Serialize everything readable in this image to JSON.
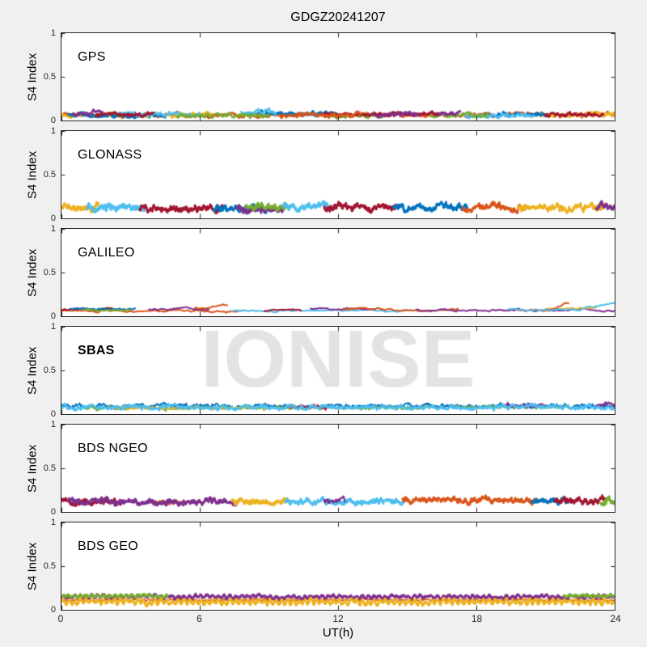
{
  "figure": {
    "title": "GDGZ20241207",
    "watermark": "IONISE",
    "background": "#f0f0f0",
    "panel_background": "#ffffff",
    "axis_color": "#262626",
    "text_color": "#000000",
    "watermark_color": "#e3e3e3"
  },
  "chart_data": {
    "type": "line",
    "title": "GDGZ20241207",
    "xlabel": "UT(h)",
    "ylabel": "S4 Index",
    "x_range": [
      0,
      24
    ],
    "y_range": [
      0,
      1
    ],
    "x_ticks": [
      0,
      6,
      12,
      18,
      24
    ],
    "y_ticks": [
      0,
      0.5,
      1
    ],
    "grid": false,
    "legend": "none",
    "watermark_text": "IONISE",
    "palette": {
      "blue": "#0072BD",
      "orange": "#D95319",
      "yellow": "#EDB120",
      "purple": "#7E2F8E",
      "green": "#77AC30",
      "lightblue": "#4DBEEE",
      "darkred": "#A2142F"
    },
    "panels": [
      {
        "label": "GPS",
        "bold": false,
        "lw": 2.4,
        "amp": 0.03,
        "pts": 50,
        "series": [
          {
            "c": "orange",
            "t0": 0,
            "t1": 24,
            "b": 0.065
          },
          {
            "c": "yellow",
            "t0": 0,
            "t1": 6.5,
            "b": 0.06
          },
          {
            "c": "yellow",
            "t0": 20.5,
            "t1": 24,
            "b": 0.07
          },
          {
            "c": "blue",
            "t0": 0.3,
            "t1": 4.5,
            "b": 0.055
          },
          {
            "c": "blue",
            "t0": 8,
            "t1": 12,
            "b": 0.08
          },
          {
            "c": "blue",
            "t0": 18.3,
            "t1": 21,
            "b": 0.07
          },
          {
            "c": "lightblue",
            "t0": 2.5,
            "t1": 6,
            "b": 0.07
          },
          {
            "c": "lightblue",
            "t0": 7.8,
            "t1": 9.3,
            "b": 0.095
          },
          {
            "c": "lightblue",
            "t0": 17.5,
            "t1": 20.5,
            "b": 0.06
          },
          {
            "c": "green",
            "t0": 5,
            "t1": 9,
            "b": 0.06
          },
          {
            "c": "green",
            "t0": 11.5,
            "t1": 14,
            "b": 0.055
          },
          {
            "c": "green",
            "t0": 16,
            "t1": 18.5,
            "b": 0.06
          },
          {
            "c": "darkred",
            "t0": 1.5,
            "t1": 4,
            "b": 0.07
          },
          {
            "c": "darkred",
            "t0": 11.3,
            "t1": 16.5,
            "b": 0.07
          },
          {
            "c": "darkred",
            "t0": 21,
            "t1": 23.5,
            "b": 0.07
          },
          {
            "c": "purple",
            "t0": 0.5,
            "t1": 1.8,
            "b": 0.085
          },
          {
            "c": "purple",
            "t0": 13.5,
            "t1": 15.5,
            "b": 0.07
          },
          {
            "c": "purple",
            "t0": 16.3,
            "t1": 17.3,
            "b": 0.08
          },
          {
            "c": "orange",
            "t0": 9.5,
            "t1": 13,
            "b": 0.06
          }
        ]
      },
      {
        "label": "GLONASS",
        "bold": false,
        "lw": 3,
        "amp": 0.05,
        "pts": 50,
        "series": [
          {
            "c": "yellow",
            "t0": 0,
            "t1": 1.6,
            "b": 0.13
          },
          {
            "c": "lightblue",
            "t0": 1.1,
            "t1": 3.6,
            "b": 0.12
          },
          {
            "c": "darkred",
            "t0": 3.4,
            "t1": 7.0,
            "b": 0.11
          },
          {
            "c": "blue",
            "t0": 6.6,
            "t1": 9.0,
            "b": 0.12
          },
          {
            "c": "purple",
            "t0": 7.6,
            "t1": 9.6,
            "b": 0.11
          },
          {
            "c": "green",
            "t0": 8.0,
            "t1": 9.9,
            "b": 0.13
          },
          {
            "c": "lightblue",
            "t0": 9.6,
            "t1": 11.6,
            "b": 0.14
          },
          {
            "c": "darkred",
            "t0": 11.4,
            "t1": 14.6,
            "b": 0.12
          },
          {
            "c": "blue",
            "t0": 14.4,
            "t1": 17.6,
            "b": 0.12
          },
          {
            "c": "orange",
            "t0": 17.4,
            "t1": 20.2,
            "b": 0.12
          },
          {
            "c": "yellow",
            "t0": 19.8,
            "t1": 23.6,
            "b": 0.13
          },
          {
            "c": "purple",
            "t0": 23.2,
            "t1": 24,
            "b": 0.12
          }
        ]
      },
      {
        "label": "GALILEO",
        "bold": false,
        "lw": 2,
        "amp": 0.018,
        "pts": 14,
        "series": [
          {
            "c": "orange",
            "t0": 0,
            "t1": 8,
            "b": 0.06
          },
          {
            "c": "darkred",
            "t0": 0,
            "t1": 2.2,
            "b": 0.08
          },
          {
            "c": "blue",
            "t0": 0.4,
            "t1": 3.2,
            "b": 0.085
          },
          {
            "c": "green",
            "t0": 1.0,
            "t1": 3.0,
            "b": 0.075
          },
          {
            "c": "purple",
            "t0": 3.8,
            "t1": 6.4,
            "b": 0.075
          },
          {
            "c": "orange",
            "t0": 5.8,
            "t1": 7.2,
            "b": 0.1,
            "rt": 0.13
          },
          {
            "c": "lightblue",
            "t0": 7.4,
            "t1": 15.2,
            "b": 0.065
          },
          {
            "c": "darkred",
            "t0": 8.8,
            "t1": 10.4,
            "b": 0.06
          },
          {
            "c": "purple",
            "t0": 10.8,
            "t1": 13.6,
            "b": 0.085
          },
          {
            "c": "orange",
            "t0": 12.2,
            "t1": 17.2,
            "b": 0.075
          },
          {
            "c": "purple",
            "t0": 15.4,
            "t1": 24,
            "b": 0.07
          },
          {
            "c": "yellow",
            "t0": 21.0,
            "t1": 23.2,
            "b": 0.09
          },
          {
            "c": "orange",
            "t0": 19.8,
            "t1": 22.0,
            "b": 0.07,
            "rt": 0.15
          },
          {
            "c": "lightblue",
            "t0": 19.4,
            "t1": 24,
            "b": 0.075,
            "rt": 0.17
          }
        ]
      },
      {
        "label": "SBAS",
        "bold": true,
        "lw": 2.4,
        "amp": 0.032,
        "pts": 50,
        "series": [
          {
            "c": "blue",
            "t0": 0,
            "t1": 24,
            "b": 0.09,
            "a": 0.03,
            "lw": 1.8
          },
          {
            "c": "green",
            "t0": 1,
            "t1": 16,
            "b": 0.07,
            "a": 0.025,
            "lw": 1.5
          },
          {
            "c": "yellow",
            "t0": 2,
            "t1": 8.5,
            "b": 0.07,
            "a": 0.022,
            "lw": 1.5
          },
          {
            "c": "darkred",
            "t0": 9.8,
            "t1": 11.6,
            "b": 0.08,
            "lw": 1.8
          },
          {
            "c": "green",
            "t0": 17,
            "t1": 22,
            "b": 0.08,
            "a": 0.022,
            "lw": 1.5
          },
          {
            "c": "purple",
            "t0": 19.3,
            "t1": 21.0,
            "b": 0.1,
            "lw": 2.2
          },
          {
            "c": "purple",
            "t0": 23.2,
            "t1": 24,
            "b": 0.1,
            "lw": 2.2
          },
          {
            "c": "lightblue",
            "t0": 0,
            "t1": 24,
            "b": 0.08
          }
        ]
      },
      {
        "label": "BDS NGEO",
        "bold": false,
        "lw": 3,
        "amp": 0.045,
        "pts": 50,
        "series": [
          {
            "c": "orange",
            "t0": 3.9,
            "t1": 5.3,
            "b": 0.12,
            "lw": 2
          },
          {
            "c": "darkred",
            "t0": 0,
            "t1": 2.6,
            "b": 0.12
          },
          {
            "c": "purple",
            "t0": 0.3,
            "t1": 7.6,
            "b": 0.12
          },
          {
            "c": "yellow",
            "t0": 7.4,
            "t1": 9.9,
            "b": 0.12
          },
          {
            "c": "lightblue",
            "t0": 9.7,
            "t1": 14.9,
            "b": 0.12
          },
          {
            "c": "purple",
            "t0": 11.4,
            "t1": 12.3,
            "b": 0.12,
            "lw": 2
          },
          {
            "c": "orange",
            "t0": 14.8,
            "t1": 20.6,
            "b": 0.13
          },
          {
            "c": "blue",
            "t0": 20.4,
            "t1": 22.0,
            "b": 0.13
          },
          {
            "c": "darkred",
            "t0": 21.4,
            "t1": 23.6,
            "b": 0.13
          },
          {
            "c": "green",
            "t0": 23.4,
            "t1": 24,
            "b": 0.12
          }
        ]
      },
      {
        "label": "BDS GEO",
        "bold": false,
        "lw": 3,
        "amp": 0.026,
        "pts": 50,
        "series": [
          {
            "c": "orange",
            "t0": 0,
            "t1": 24,
            "b": 0.115,
            "a": 0.012,
            "lw": 1.5,
            "osc": 0.5
          },
          {
            "c": "purple",
            "t0": 0,
            "t1": 24,
            "b": 0.15,
            "a": 0.02,
            "lw": 3,
            "osc": 0.7
          },
          {
            "c": "green",
            "t0": 0,
            "t1": 4.6,
            "b": 0.16,
            "a": 0.018,
            "lw": 3,
            "osc": 0.6
          },
          {
            "c": "green",
            "t0": 21.8,
            "t1": 24,
            "b": 0.16,
            "a": 0.018,
            "lw": 3,
            "osc": 0.6
          },
          {
            "c": "yellow",
            "t0": 0,
            "t1": 24,
            "b": 0.09,
            "a": 0.024,
            "lw": 3,
            "osc": 0.9
          }
        ]
      }
    ]
  }
}
